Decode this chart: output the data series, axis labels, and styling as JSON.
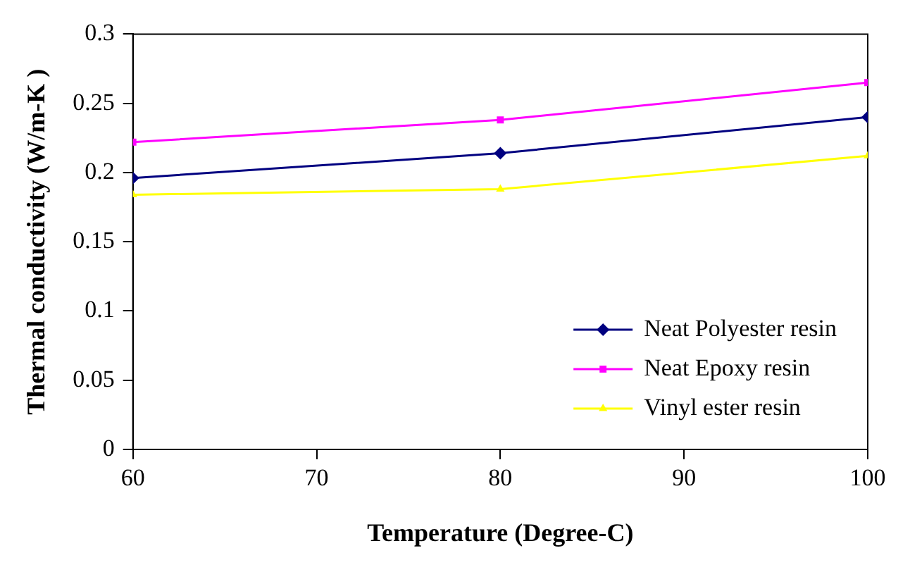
{
  "chart_data": {
    "type": "line",
    "xlabel": "Temperature (Degree-C)",
    "ylabel": "Thermal conductivity (W/m-K )",
    "x": [
      60,
      80,
      100
    ],
    "series": [
      {
        "name": "Neat Polyester resin",
        "color": "#000080",
        "marker": "diamond",
        "values": [
          0.196,
          0.214,
          0.24
        ]
      },
      {
        "name": "Neat Epoxy resin",
        "color": "#ff00ff",
        "marker": "square",
        "values": [
          0.222,
          0.238,
          0.265
        ]
      },
      {
        "name": "Vinyl ester resin",
        "color": "#ffff00",
        "marker": "triangle",
        "values": [
          0.184,
          0.188,
          0.212
        ]
      }
    ],
    "xlim": [
      60,
      100
    ],
    "xticks": [
      60,
      70,
      80,
      90,
      100
    ],
    "ylim": [
      0,
      0.3
    ],
    "yticks": [
      0,
      0.05,
      0.1,
      0.15,
      0.2,
      0.25,
      0.3
    ],
    "grid": false,
    "legend": "bottom right",
    "line_style": "solid"
  }
}
